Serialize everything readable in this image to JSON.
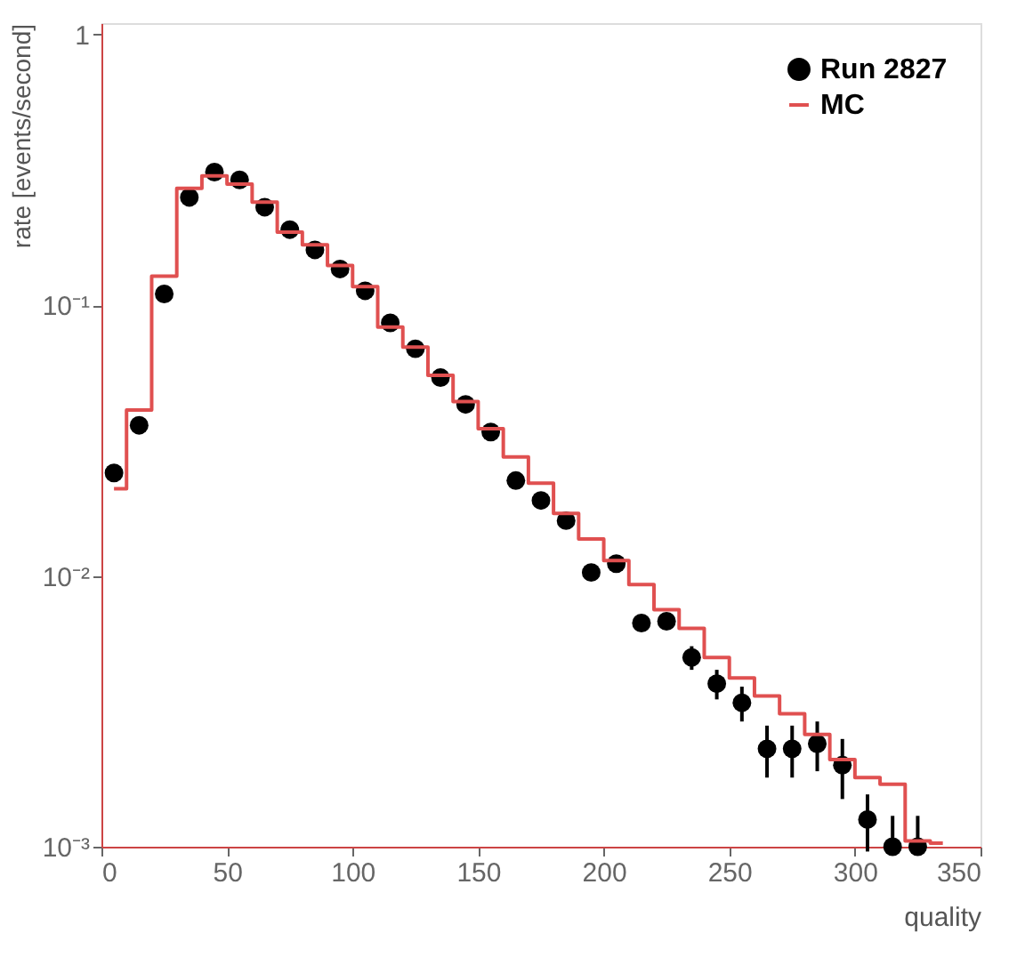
{
  "chart_data": {
    "type": "scatter",
    "xlabel": "quality",
    "ylabel": "rate [events/second]",
    "log": "y",
    "xlim": [
      0,
      350
    ],
    "xticks": [
      0,
      50,
      100,
      150,
      200,
      250,
      300,
      350
    ],
    "ylim": [
      0.001,
      1.1
    ],
    "yticks": [
      {
        "value": 0.001,
        "label": "10⁻³"
      },
      {
        "value": 0.01,
        "label": "10⁻²"
      },
      {
        "value": 0.1,
        "label": "10⁻¹"
      },
      {
        "value": 1,
        "label": "1"
      }
    ],
    "legend": "top right",
    "grid": false,
    "x": [
      5,
      15,
      25,
      35,
      45,
      55,
      65,
      75,
      85,
      95,
      105,
      115,
      125,
      135,
      145,
      155,
      165,
      175,
      185,
      195,
      205,
      215,
      225,
      235,
      245,
      255,
      265,
      275,
      285,
      295,
      305,
      315,
      325
    ],
    "series": [
      {
        "name": "Run 2827",
        "type": "scatter",
        "marker": "circle",
        "color": "#000000",
        "values": [
          0.024,
          0.036,
          0.11,
          0.25,
          0.31,
          0.29,
          0.23,
          0.19,
          0.16,
          0.136,
          0.113,
          0.086,
          0.069,
          0.054,
          0.043,
          0.034,
          0.0225,
          0.019,
          0.016,
          0.0103,
          0.0111,
          0.0067,
          0.0068,
          0.005,
          0.004,
          0.0034,
          0.0023,
          0.0023,
          0.0024,
          0.002,
          0.00126,
          0.001,
          0.001
        ],
        "errors": [
          null,
          null,
          null,
          null,
          null,
          null,
          null,
          null,
          null,
          null,
          null,
          null,
          null,
          null,
          null,
          null,
          null,
          null,
          null,
          null,
          null,
          null,
          null,
          0.0005,
          0.0005,
          0.0005,
          0.0005,
          0.0005,
          0.0005,
          0.0005,
          0.0003,
          [
            0.001,
            0.0013
          ],
          [
            0.001,
            0.0013
          ]
        ]
      },
      {
        "name": "MC",
        "type": "step",
        "color": "#e05050",
        "x": [
          5,
          15,
          25,
          35,
          45,
          55,
          65,
          75,
          85,
          95,
          105,
          115,
          125,
          135,
          145,
          155,
          165,
          175,
          185,
          195,
          205,
          215,
          225,
          235,
          245,
          255,
          265,
          275,
          285,
          295,
          305,
          315,
          325,
          335
        ],
        "values": [
          0.021,
          0.041,
          0.128,
          0.27,
          0.3,
          0.28,
          0.24,
          0.186,
          0.167,
          0.14,
          0.117,
          0.083,
          0.07,
          0.055,
          0.044,
          0.035,
          0.0275,
          0.022,
          0.017,
          0.0137,
          0.0114,
          0.0093,
          0.0075,
          0.0064,
          0.005,
          0.0042,
          0.0036,
          0.0031,
          0.0026,
          0.0021,
          0.0018,
          0.0017,
          0.00105,
          0.00103
        ]
      }
    ]
  }
}
